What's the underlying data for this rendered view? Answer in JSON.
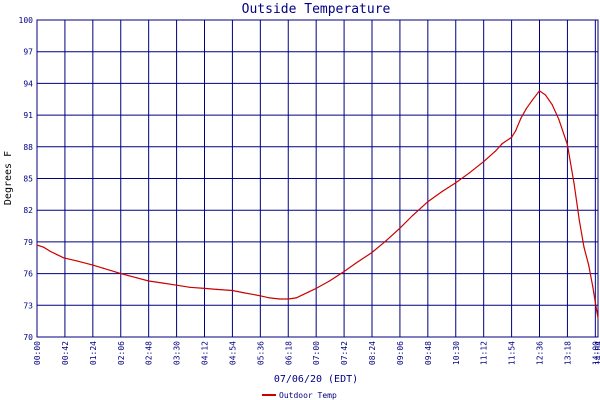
{
  "chart_data": {
    "type": "line",
    "title": "Outside Temperature",
    "xlabel": "07/06/20 (EDT)",
    "ylabel": "Degrees F",
    "ylim": [
      70,
      100
    ],
    "yticks": [
      70,
      73,
      76,
      79,
      82,
      85,
      88,
      91,
      94,
      97,
      100
    ],
    "xlim": [
      0,
      996
    ],
    "xticks": [
      {
        "label": "00:00",
        "min": 0
      },
      {
        "label": "00:42",
        "min": 42
      },
      {
        "label": "01:24",
        "min": 84
      },
      {
        "label": "02:06",
        "min": 126
      },
      {
        "label": "02:48",
        "min": 168
      },
      {
        "label": "03:30",
        "min": 210
      },
      {
        "label": "04:12",
        "min": 252
      },
      {
        "label": "04:54",
        "min": 294
      },
      {
        "label": "05:36",
        "min": 336
      },
      {
        "label": "06:18",
        "min": 378
      },
      {
        "label": "07:00",
        "min": 420
      },
      {
        "label": "07:42",
        "min": 462
      },
      {
        "label": "08:24",
        "min": 504
      },
      {
        "label": "09:06",
        "min": 546
      },
      {
        "label": "09:48",
        "min": 588
      },
      {
        "label": "10:30",
        "min": 630
      },
      {
        "label": "11:12",
        "min": 672
      },
      {
        "label": "11:54",
        "min": 714
      },
      {
        "label": "12:36",
        "min": 756
      },
      {
        "label": "13:18",
        "min": 798
      },
      {
        "label": "14:00",
        "min": 840
      },
      {
        "label": "14:04",
        "min": 844
      }
    ],
    "grid": true,
    "legend_position": "bottom-left",
    "series": [
      {
        "name": "Outdoor Temp",
        "color": "#cc0000",
        "x": [
          0,
          10,
          20,
          30,
          40,
          60,
          84,
          100,
          126,
          150,
          168,
          190,
          210,
          230,
          252,
          270,
          294,
          310,
          336,
          350,
          365,
          378,
          390,
          400,
          410,
          420,
          440,
          462,
          480,
          504,
          525,
          546,
          565,
          588,
          610,
          630,
          650,
          672,
          690,
          700,
          714,
          720,
          728,
          736,
          745,
          756,
          765,
          775,
          785,
          798,
          808,
          816,
          823,
          830,
          836,
          840,
          842,
          844
        ],
        "values": [
          78.7,
          78.5,
          78.1,
          77.8,
          77.5,
          77.2,
          76.8,
          76.5,
          76.0,
          75.6,
          75.3,
          75.1,
          74.9,
          74.7,
          74.6,
          74.5,
          74.4,
          74.2,
          73.9,
          73.7,
          73.6,
          73.6,
          73.7,
          74.0,
          74.3,
          74.6,
          75.3,
          76.2,
          77.0,
          78.0,
          79.1,
          80.3,
          81.5,
          82.8,
          83.8,
          84.6,
          85.5,
          86.6,
          87.6,
          88.3,
          88.9,
          89.5,
          90.7,
          91.6,
          92.4,
          93.3,
          92.9,
          92.0,
          90.6,
          88.2,
          84.5,
          81.0,
          78.5,
          76.8,
          74.8,
          73.3,
          72.5,
          71.8
        ]
      }
    ]
  }
}
